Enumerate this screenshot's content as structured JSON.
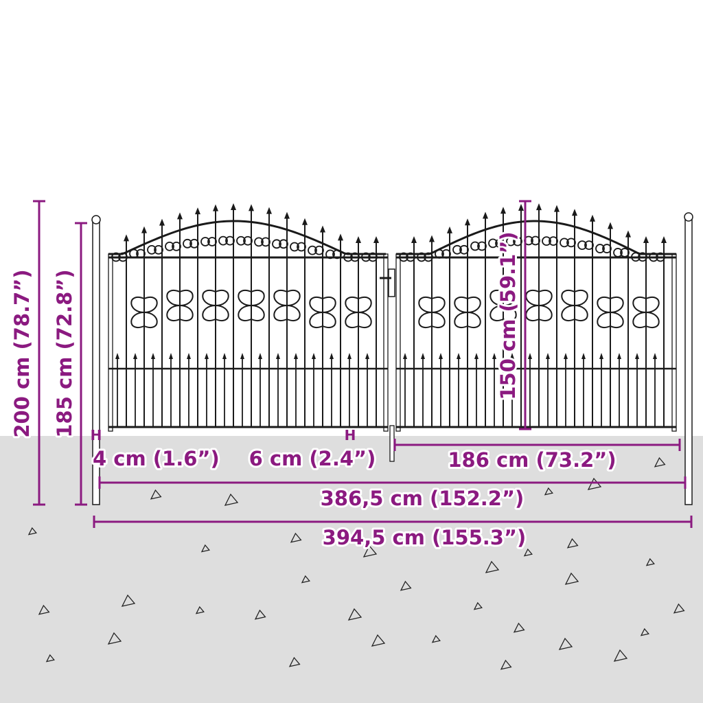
{
  "colors": {
    "dimension": "#8b1a80",
    "ground": "#dedede",
    "gate": "#1a1a1a"
  },
  "dimensions": {
    "total_height": "200 cm (78.7”)",
    "post_height": "185 cm (72.8”)",
    "gate_height": "150 cm (59.1”)",
    "post_width": "4 cm (1.6”)",
    "gap_width": "6 cm (2.4”)",
    "leaf_width": "186 cm (73.2”)",
    "inner_width": "386,5 cm (152.2”)",
    "total_width": "394,5 cm (155.3”)"
  },
  "markers": {
    "post_marker": "H",
    "gap_marker": "H"
  }
}
